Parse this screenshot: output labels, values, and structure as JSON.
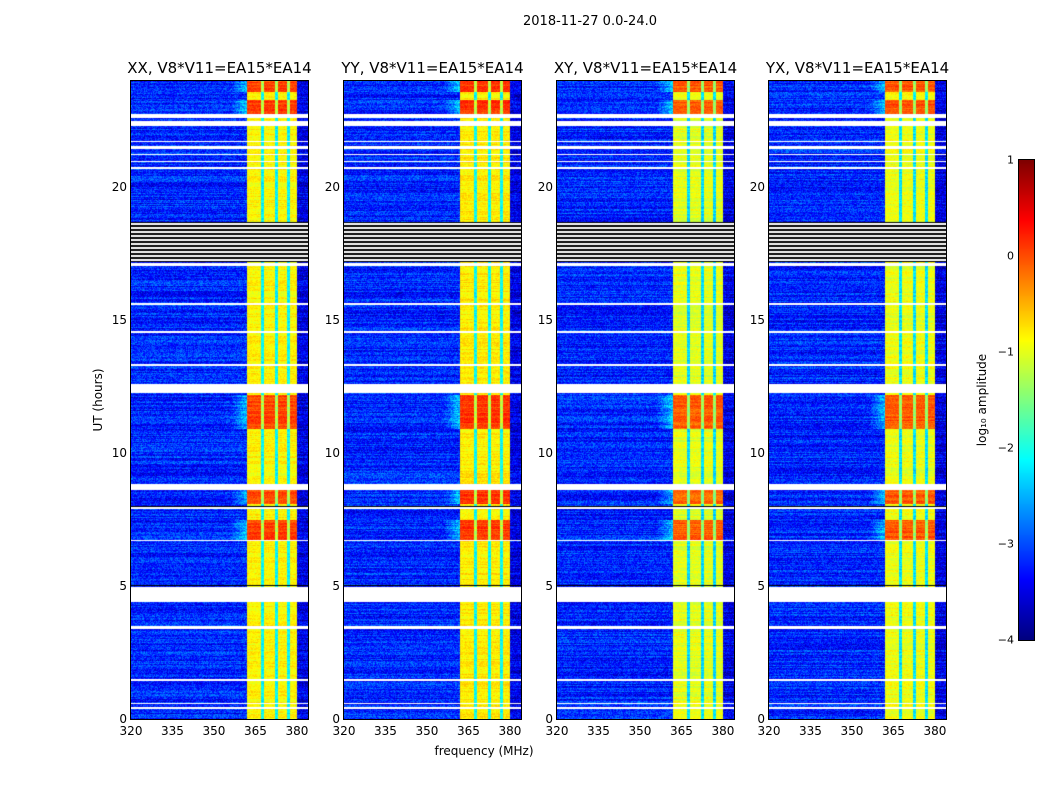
{
  "suptitle": "2018-11-27 0.0-24.0",
  "chart_data": {
    "type": "heatmap",
    "title": "2018-11-27 0.0-24.0",
    "xlabel": "frequency (MHz)",
    "ylabel": "UT (hours)",
    "xlim": [
      320,
      384
    ],
    "ylim": [
      0,
      24
    ],
    "xticks": [
      "320",
      "335",
      "350",
      "365",
      "380"
    ],
    "xtick_values": [
      320,
      335,
      350,
      365,
      380
    ],
    "yticks": [
      "0",
      "5",
      "10",
      "15",
      "20"
    ],
    "ytick_values": [
      0,
      5,
      10,
      15,
      20
    ],
    "panels": [
      {
        "title": "XX, V8*V11=EA15*EA14",
        "level_offset": 0.15
      },
      {
        "title": "YY, V8*V11=EA15*EA14",
        "level_offset": 0.2
      },
      {
        "title": "XY, V8*V11=EA15*EA14",
        "level_offset": 0.0
      },
      {
        "title": "YX, V8*V11=EA15*EA14",
        "level_offset": 0.05
      }
    ],
    "background_log_amplitude": -3.2,
    "bright_band_mhz": [
      362,
      380
    ],
    "bright_band_log_amplitude": -1.0,
    "channel_edges_mhz": [
      367.5,
      372.5,
      377
    ],
    "hot_intervals_ut": [
      [
        6.7,
        7.5
      ],
      [
        8.1,
        8.6
      ],
      [
        10.9,
        12.2
      ],
      [
        22.6,
        23.3
      ],
      [
        23.6,
        24
      ]
    ],
    "gap_intervals_ut": [
      [
        0.38,
        0.45
      ],
      [
        1.42,
        1.5
      ],
      [
        3.4,
        3.5
      ],
      [
        4.4,
        4.95
      ],
      [
        6.68,
        6.73
      ],
      [
        8.6,
        8.85
      ],
      [
        12.25,
        12.6
      ],
      [
        13.28,
        13.35
      ],
      [
        14.52,
        14.58
      ],
      [
        15.58,
        15.65
      ],
      [
        17.05,
        17.15
      ],
      [
        20.7,
        20.75
      ],
      [
        20.95,
        21.0
      ],
      [
        21.2,
        21.25
      ],
      [
        21.45,
        21.55
      ],
      [
        21.7,
        21.75
      ],
      [
        22.3,
        22.5
      ],
      [
        22.6,
        22.75
      ]
    ],
    "flagged_intervals_ut": [
      [
        17.2,
        18.7
      ],
      [
        7.9,
        8.0
      ],
      [
        5.0,
        5.05
      ],
      [
        0.55,
        0.62
      ]
    ],
    "colorbar": {
      "label": "log₁₀ amplitude",
      "range": [
        -4,
        1
      ],
      "ticks": [
        "1",
        "0",
        "−1",
        "−2",
        "−3",
        "−4"
      ],
      "tick_values": [
        1,
        0,
        -1,
        -2,
        -3,
        -4
      ],
      "colormap": "jet"
    }
  }
}
